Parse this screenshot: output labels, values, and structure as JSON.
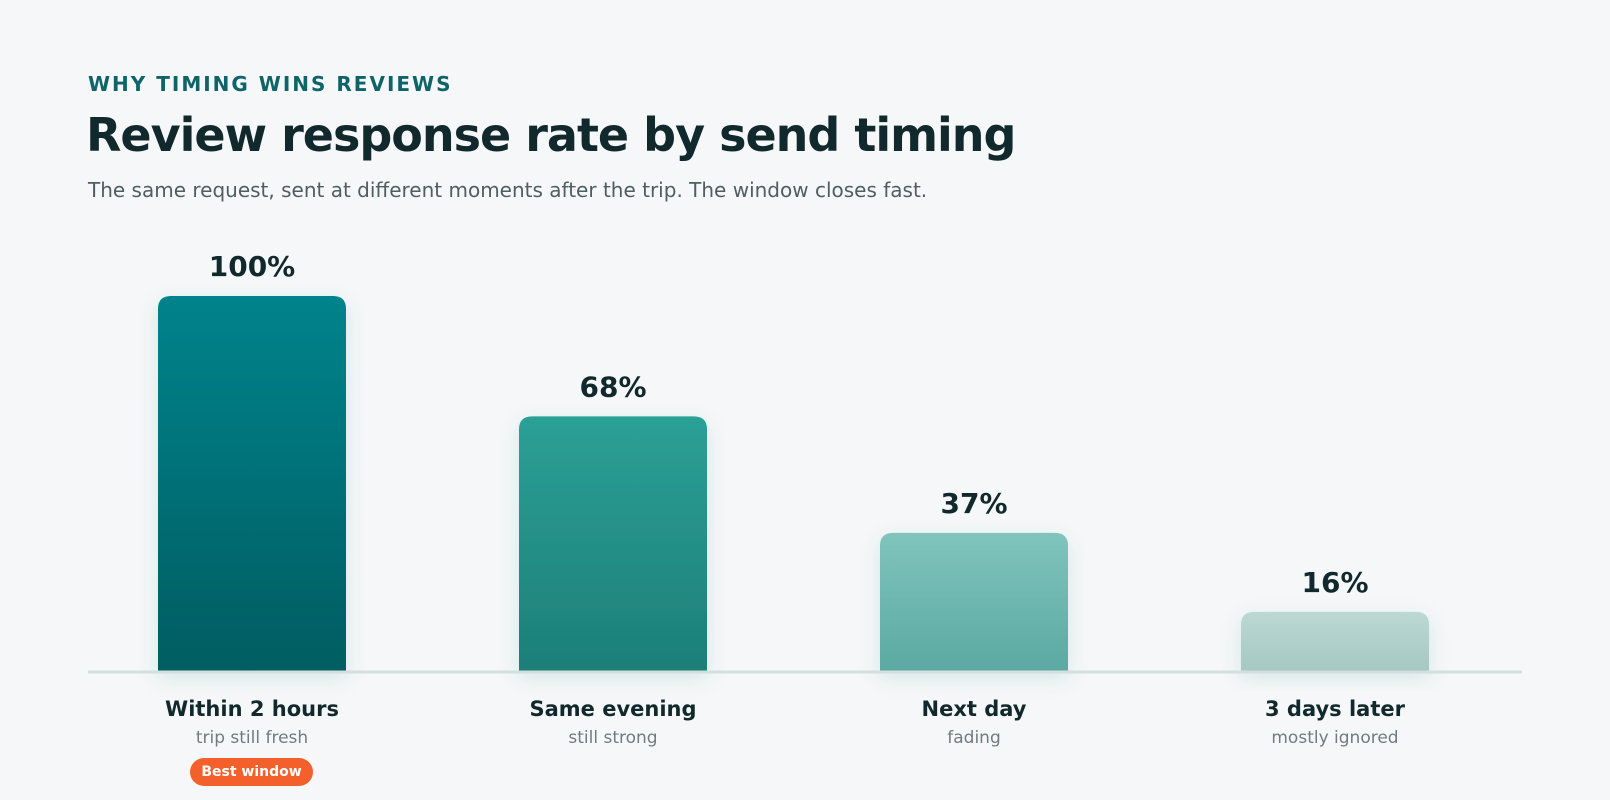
{
  "header": {
    "eyebrow": "WHY TIMING WINS REVIEWS",
    "title": "Review response rate by send timing",
    "subtitle": "The same request, sent at different moments after the trip. The window closes fast."
  },
  "badge": {
    "label": "Best window",
    "color": "#f4602b"
  },
  "chart_data": {
    "type": "bar",
    "title": "Review response rate by send timing",
    "subtitle": "The same request, sent at different moments after the trip. The window closes fast.",
    "categories": [
      "Within 2 hours",
      "Same evening",
      "Next day",
      "3 days later"
    ],
    "sublabels": [
      "trip still fresh",
      "still strong",
      "fading",
      "mostly ignored"
    ],
    "values": [
      100,
      68,
      37,
      16
    ],
    "value_labels": [
      "100%",
      "68%",
      "37%",
      "16%"
    ],
    "ylim": [
      0,
      100
    ],
    "grid": false,
    "legend": "none",
    "colors": [
      [
        "#03838c",
        "#025d61"
      ],
      [
        "#2ca096",
        "#1c7f78"
      ],
      [
        "#80c4bd",
        "#5aa9a2"
      ],
      [
        "#bcd8d3",
        "#a4c8c2"
      ]
    ]
  }
}
